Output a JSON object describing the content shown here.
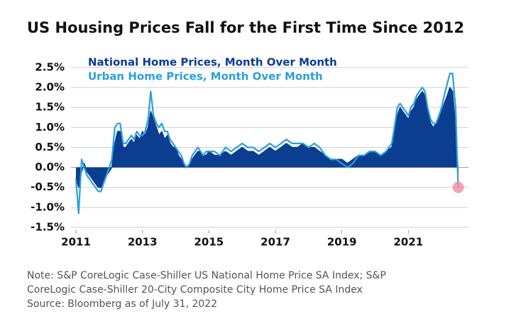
{
  "chart_data": {
    "type": "area-line",
    "title": "US Housing Prices Fall for the First Time Since 2012",
    "x": [
      2011.0,
      2011.08,
      2011.17,
      2011.25,
      2011.33,
      2011.5,
      2011.67,
      2011.75,
      2011.83,
      2011.92,
      2012.0,
      2012.08,
      2012.17,
      2012.25,
      2012.33,
      2012.42,
      2012.5,
      2012.58,
      2012.67,
      2012.75,
      2012.83,
      2012.92,
      2013.0,
      2013.08,
      2013.17,
      2013.25,
      2013.33,
      2013.42,
      2013.5,
      2013.58,
      2013.67,
      2013.75,
      2013.83,
      2013.92,
      2014.0,
      2014.08,
      2014.17,
      2014.25,
      2014.33,
      2014.42,
      2014.5,
      2014.58,
      2014.67,
      2014.75,
      2014.83,
      2014.92,
      2015.0,
      2015.17,
      2015.33,
      2015.5,
      2015.67,
      2015.83,
      2016.0,
      2016.17,
      2016.33,
      2016.5,
      2016.67,
      2016.83,
      2017.0,
      2017.17,
      2017.33,
      2017.5,
      2017.67,
      2017.83,
      2018.0,
      2018.17,
      2018.33,
      2018.5,
      2018.67,
      2018.83,
      2019.0,
      2019.17,
      2019.33,
      2019.5,
      2019.67,
      2019.83,
      2020.0,
      2020.17,
      2020.33,
      2020.5,
      2020.58,
      2020.67,
      2020.75,
      2020.83,
      2020.92,
      2021.0,
      2021.08,
      2021.17,
      2021.25,
      2021.33,
      2021.42,
      2021.5,
      2021.58,
      2021.67,
      2021.75,
      2021.83,
      2021.92,
      2022.0,
      2022.08,
      2022.17,
      2022.25,
      2022.33,
      2022.42,
      2022.5
    ],
    "series": [
      {
        "name": "National Home Prices, Month Over Month",
        "color": "#0b3d91",
        "fill": true,
        "values": [
          -0.25,
          -0.5,
          -0.1,
          0.1,
          -0.1,
          -0.3,
          -0.5,
          -0.5,
          -0.4,
          -0.2,
          -0.1,
          0.0,
          0.6,
          0.9,
          0.9,
          0.5,
          0.5,
          0.6,
          0.7,
          0.6,
          0.8,
          0.7,
          0.9,
          0.8,
          1.0,
          1.4,
          1.2,
          1.0,
          0.8,
          0.9,
          0.7,
          0.8,
          0.6,
          0.5,
          0.5,
          0.3,
          0.2,
          0.1,
          0.0,
          0.1,
          0.2,
          0.3,
          0.4,
          0.4,
          0.3,
          0.3,
          0.4,
          0.3,
          0.3,
          0.4,
          0.3,
          0.4,
          0.5,
          0.4,
          0.4,
          0.3,
          0.4,
          0.5,
          0.4,
          0.5,
          0.6,
          0.5,
          0.5,
          0.6,
          0.5,
          0.5,
          0.4,
          0.3,
          0.2,
          0.2,
          0.2,
          0.1,
          0.2,
          0.3,
          0.3,
          0.4,
          0.4,
          0.3,
          0.4,
          0.5,
          0.8,
          1.3,
          1.5,
          1.4,
          1.3,
          1.2,
          1.4,
          1.5,
          1.7,
          1.8,
          1.9,
          1.8,
          1.4,
          1.1,
          1.0,
          1.1,
          1.2,
          1.4,
          1.6,
          1.8,
          2.0,
          1.9,
          1.0,
          -0.1
        ]
      },
      {
        "name": "Urban Home Prices, Month Over Month",
        "color": "#2aa0d8",
        "fill": false,
        "highlight_last": "#f08aa8",
        "values": [
          -0.3,
          -1.15,
          0.2,
          0.0,
          -0.2,
          -0.4,
          -0.6,
          -0.6,
          -0.4,
          -0.2,
          0.0,
          0.2,
          1.0,
          1.1,
          1.1,
          0.6,
          0.6,
          0.7,
          0.8,
          0.7,
          0.9,
          0.8,
          0.8,
          0.9,
          1.2,
          1.9,
          1.3,
          1.1,
          1.0,
          1.1,
          0.9,
          0.9,
          0.7,
          0.6,
          0.5,
          0.4,
          0.3,
          0.1,
          0.0,
          0.1,
          0.3,
          0.4,
          0.5,
          0.4,
          0.3,
          0.4,
          0.4,
          0.4,
          0.3,
          0.5,
          0.4,
          0.5,
          0.6,
          0.5,
          0.5,
          0.4,
          0.5,
          0.6,
          0.5,
          0.6,
          0.7,
          0.6,
          0.6,
          0.6,
          0.5,
          0.6,
          0.5,
          0.3,
          0.2,
          0.2,
          0.1,
          0.0,
          0.1,
          0.3,
          0.3,
          0.4,
          0.4,
          0.3,
          0.4,
          0.6,
          1.0,
          1.5,
          1.6,
          1.5,
          1.4,
          1.3,
          1.5,
          1.6,
          1.8,
          1.9,
          2.0,
          1.9,
          1.5,
          1.2,
          1.1,
          1.1,
          1.3,
          1.5,
          1.8,
          2.1,
          2.35,
          2.35,
          1.5,
          -0.5
        ]
      }
    ],
    "xlim": [
      2010.85,
      2022.7
    ],
    "xticks": [
      2011,
      2013,
      2015,
      2017,
      2019,
      2021
    ],
    "ylim": [
      -1.6,
      2.9
    ],
    "yticks": [
      {
        "value": -1.5,
        "label": "-1.5%"
      },
      {
        "value": -1.0,
        "label": "-1.0%"
      },
      {
        "value": -0.5,
        "label": "-0.5%"
      },
      {
        "value": 0.0,
        "label": "0.0%"
      },
      {
        "value": 0.5,
        "label": "0.5%"
      },
      {
        "value": 1.0,
        "label": "1.0%"
      },
      {
        "value": 1.5,
        "label": "1.5%"
      },
      {
        "value": 2.0,
        "label": "2.0%"
      },
      {
        "value": 2.5,
        "label": "2.5%"
      }
    ],
    "grid": true,
    "legend": "top-left",
    "notes": [
      "Note: S&P CoreLogic Case-Shiller US National Home Price SA Index; S&P",
      "CoreLogic Case-Shiller 20-City Composite City Home Price SA Index",
      "Source: Bloomberg as of July 31, 2022"
    ]
  }
}
